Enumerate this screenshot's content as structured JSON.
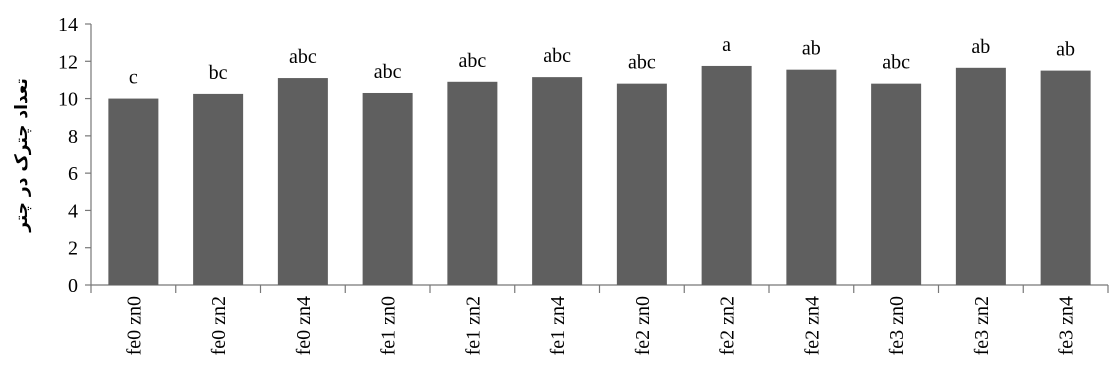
{
  "chart_data": {
    "type": "bar",
    "categories": [
      "fe0 zn0",
      "fe0 zn2",
      "fe0 zn4",
      "fe1 zn0",
      "fe1 zn2",
      "fe1 zn4",
      "fe2 zn0",
      "fe2 zn2",
      "fe2 zn4",
      "fe3 zn0",
      "fe3 zn2",
      "fe3 zn4"
    ],
    "values": [
      10.0,
      10.25,
      11.1,
      10.3,
      10.9,
      11.15,
      10.8,
      11.75,
      11.55,
      10.8,
      11.65,
      11.5
    ],
    "data_labels": [
      "c",
      "bc",
      "abc",
      "abc",
      "abc",
      "abc",
      "abc",
      "a",
      "ab",
      "abc",
      "ab",
      "ab"
    ],
    "ylabel": "تعداد چترک در چتر",
    "ylim": [
      0,
      14
    ],
    "yticks": [
      0,
      2,
      4,
      6,
      8,
      10,
      12,
      14
    ],
    "grid": false,
    "bar_color": "#5f5f5f"
  }
}
